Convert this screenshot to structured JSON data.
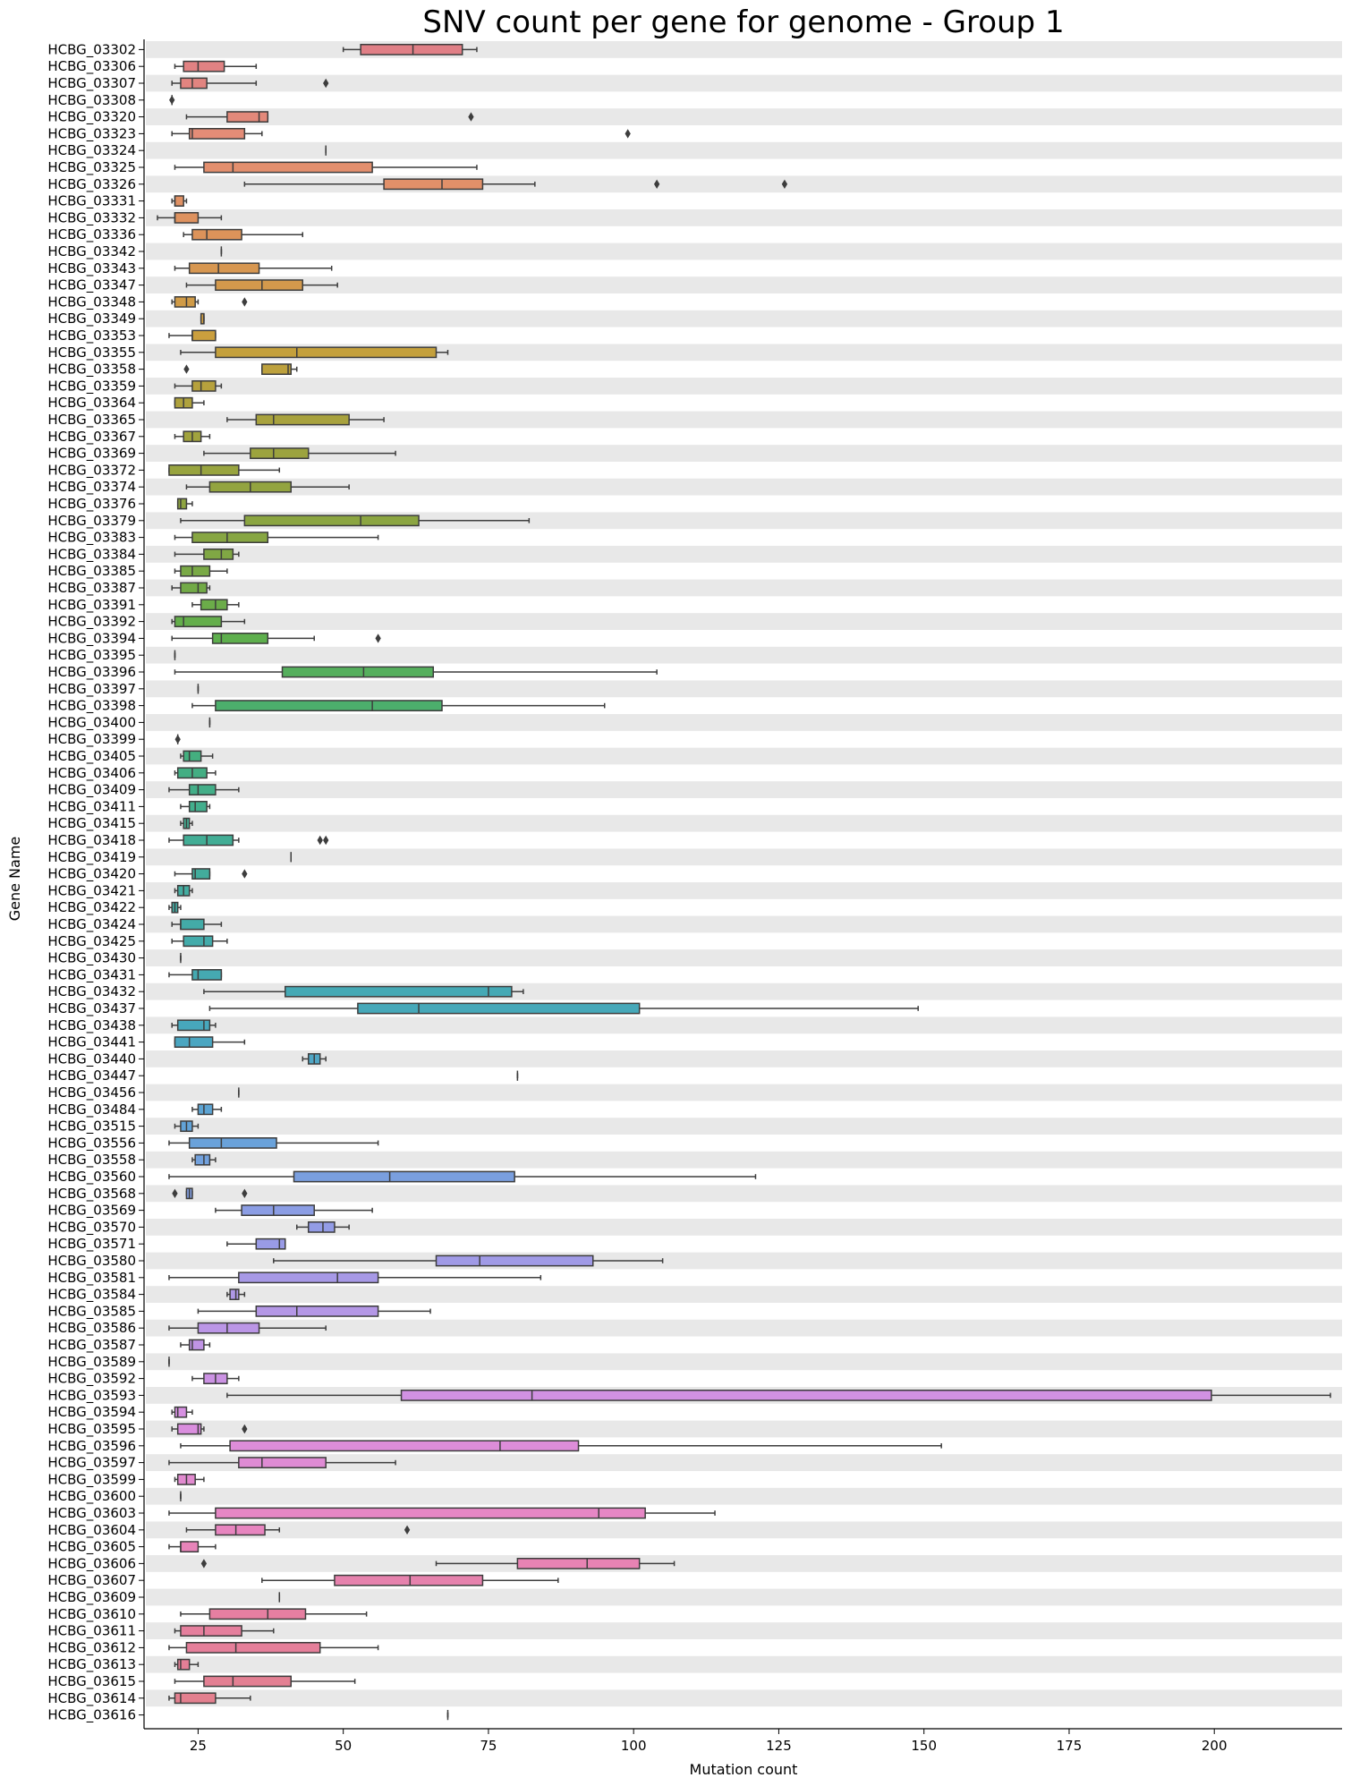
{
  "chart_data": {
    "type": "box",
    "orientation": "horizontal",
    "title": "SNV count per gene for genome - Group 1",
    "xlabel": "Mutation count",
    "ylabel": "Gene Name",
    "xlim": [
      16,
      222
    ],
    "xticks": [
      25,
      50,
      75,
      100,
      125,
      150,
      175,
      200
    ],
    "row_stripes": true,
    "palette": [
      "#e07f86",
      "#e58e74",
      "#db9457",
      "#c8a03c",
      "#9fa33e",
      "#86a642",
      "#5eaf4d",
      "#44af79",
      "#42ad94",
      "#43aba8",
      "#47a7bd",
      "#62a3d8",
      "#929ce6",
      "#b996e6",
      "#d98fe0",
      "#e786c3",
      "#e67fa0",
      "#e2808c"
    ],
    "genes": [
      {
        "name": "HCBG_03302",
        "whislo": 50,
        "q1": 53,
        "med": 62,
        "q3": 70.5,
        "whishi": 73,
        "fliers": []
      },
      {
        "name": "HCBG_03306",
        "whislo": 21,
        "q1": 22.5,
        "med": 25,
        "q3": 29.5,
        "whishi": 35,
        "fliers": []
      },
      {
        "name": "HCBG_03307",
        "whislo": 20.5,
        "q1": 22,
        "med": 24,
        "q3": 26.5,
        "whishi": 35,
        "fliers": [
          47
        ]
      },
      {
        "name": "HCBG_03308",
        "whislo": 20.5,
        "q1": 20.5,
        "med": 20.5,
        "q3": 20.5,
        "whishi": 20.5,
        "fliers": [
          20.5
        ]
      },
      {
        "name": "HCBG_03320",
        "whislo": 23,
        "q1": 30,
        "med": 35.5,
        "q3": 37,
        "whishi": 37,
        "fliers": [
          72
        ]
      },
      {
        "name": "HCBG_03323",
        "whislo": 20.5,
        "q1": 23.5,
        "med": 24,
        "q3": 33,
        "whishi": 36,
        "fliers": [
          99
        ]
      },
      {
        "name": "HCBG_03324",
        "whislo": 47,
        "q1": 47,
        "med": 47,
        "q3": 47,
        "whishi": 47,
        "fliers": []
      },
      {
        "name": "HCBG_03325",
        "whislo": 21,
        "q1": 26,
        "med": 31,
        "q3": 55,
        "whishi": 73,
        "fliers": []
      },
      {
        "name": "HCBG_03326",
        "whislo": 33,
        "q1": 57,
        "med": 67,
        "q3": 74,
        "whishi": 83,
        "fliers": [
          104,
          126
        ]
      },
      {
        "name": "HCBG_03331",
        "whislo": 20.5,
        "q1": 21,
        "med": 21,
        "q3": 22.5,
        "whishi": 23,
        "fliers": []
      },
      {
        "name": "HCBG_03332",
        "whislo": 18,
        "q1": 21,
        "med": 21,
        "q3": 25,
        "whishi": 29,
        "fliers": []
      },
      {
        "name": "HCBG_03336",
        "whislo": 22.5,
        "q1": 24,
        "med": 26.5,
        "q3": 32.5,
        "whishi": 43,
        "fliers": []
      },
      {
        "name": "HCBG_03342",
        "whislo": 29,
        "q1": 29,
        "med": 29,
        "q3": 29,
        "whishi": 29,
        "fliers": []
      },
      {
        "name": "HCBG_03343",
        "whislo": 21,
        "q1": 23.5,
        "med": 28.5,
        "q3": 35.5,
        "whishi": 48,
        "fliers": []
      },
      {
        "name": "HCBG_03347",
        "whislo": 23,
        "q1": 28,
        "med": 36,
        "q3": 43,
        "whishi": 49,
        "fliers": []
      },
      {
        "name": "HCBG_03348",
        "whislo": 20.5,
        "q1": 21,
        "med": 23,
        "q3": 24.5,
        "whishi": 25,
        "fliers": [
          33
        ]
      },
      {
        "name": "HCBG_03349",
        "whislo": 25.5,
        "q1": 25.5,
        "med": 26,
        "q3": 26,
        "whishi": 26,
        "fliers": []
      },
      {
        "name": "HCBG_03353",
        "whislo": 20,
        "q1": 24,
        "med": 24,
        "q3": 28,
        "whishi": 28,
        "fliers": []
      },
      {
        "name": "HCBG_03355",
        "whislo": 22,
        "q1": 28,
        "med": 42,
        "q3": 66,
        "whishi": 68,
        "fliers": []
      },
      {
        "name": "HCBG_03358",
        "whislo": 36,
        "q1": 36,
        "med": 40.5,
        "q3": 41,
        "whishi": 42,
        "fliers": [
          23
        ]
      },
      {
        "name": "HCBG_03359",
        "whislo": 21,
        "q1": 24,
        "med": 25.5,
        "q3": 28,
        "whishi": 29,
        "fliers": []
      },
      {
        "name": "HCBG_03364",
        "whislo": 21,
        "q1": 21,
        "med": 22.5,
        "q3": 24,
        "whishi": 26,
        "fliers": []
      },
      {
        "name": "HCBG_03365",
        "whislo": 30,
        "q1": 35,
        "med": 38,
        "q3": 51,
        "whishi": 57,
        "fliers": []
      },
      {
        "name": "HCBG_03367",
        "whislo": 21,
        "q1": 22.5,
        "med": 24,
        "q3": 25.5,
        "whishi": 27,
        "fliers": []
      },
      {
        "name": "HCBG_03369",
        "whislo": 26,
        "q1": 34,
        "med": 38,
        "q3": 44,
        "whishi": 59,
        "fliers": []
      },
      {
        "name": "HCBG_03372",
        "whislo": 20,
        "q1": 20,
        "med": 25.5,
        "q3": 32,
        "whishi": 39,
        "fliers": []
      },
      {
        "name": "HCBG_03374",
        "whislo": 23,
        "q1": 27,
        "med": 34,
        "q3": 41,
        "whishi": 51,
        "fliers": []
      },
      {
        "name": "HCBG_03376",
        "whislo": 21.5,
        "q1": 21.5,
        "med": 22,
        "q3": 23,
        "whishi": 24,
        "fliers": []
      },
      {
        "name": "HCBG_03379",
        "whislo": 22,
        "q1": 33,
        "med": 53,
        "q3": 63,
        "whishi": 82,
        "fliers": []
      },
      {
        "name": "HCBG_03383",
        "whislo": 21,
        "q1": 24,
        "med": 30,
        "q3": 37,
        "whishi": 56,
        "fliers": []
      },
      {
        "name": "HCBG_03384",
        "whislo": 21,
        "q1": 26,
        "med": 29,
        "q3": 31,
        "whishi": 32,
        "fliers": []
      },
      {
        "name": "HCBG_03385",
        "whislo": 21,
        "q1": 22,
        "med": 24,
        "q3": 27,
        "whishi": 30,
        "fliers": []
      },
      {
        "name": "HCBG_03387",
        "whislo": 20.5,
        "q1": 22,
        "med": 25,
        "q3": 26.5,
        "whishi": 27,
        "fliers": []
      },
      {
        "name": "HCBG_03391",
        "whislo": 24,
        "q1": 25.5,
        "med": 28,
        "q3": 30,
        "whishi": 32,
        "fliers": []
      },
      {
        "name": "HCBG_03392",
        "whislo": 20.5,
        "q1": 21,
        "med": 22.5,
        "q3": 29,
        "whishi": 33,
        "fliers": []
      },
      {
        "name": "HCBG_03394",
        "whislo": 20.5,
        "q1": 27.5,
        "med": 29,
        "q3": 37,
        "whishi": 45,
        "fliers": [
          56
        ]
      },
      {
        "name": "HCBG_03395",
        "whislo": 21,
        "q1": 21,
        "med": 21,
        "q3": 21,
        "whishi": 21,
        "fliers": []
      },
      {
        "name": "HCBG_03396",
        "whislo": 21,
        "q1": 39.5,
        "med": 53.5,
        "q3": 65.5,
        "whishi": 104,
        "fliers": []
      },
      {
        "name": "HCBG_03397",
        "whislo": 25,
        "q1": 25,
        "med": 25,
        "q3": 25,
        "whishi": 25,
        "fliers": []
      },
      {
        "name": "HCBG_03398",
        "whislo": 24,
        "q1": 28,
        "med": 55,
        "q3": 67,
        "whishi": 95,
        "fliers": []
      },
      {
        "name": "HCBG_03400",
        "whislo": 27,
        "q1": 27,
        "med": 27,
        "q3": 27,
        "whishi": 27,
        "fliers": []
      },
      {
        "name": "HCBG_03399",
        "whislo": 21.5,
        "q1": 21.5,
        "med": 21.5,
        "q3": 21.5,
        "whishi": 21.5,
        "fliers": [
          21.5
        ]
      },
      {
        "name": "HCBG_03405",
        "whislo": 22,
        "q1": 22.5,
        "med": 23.5,
        "q3": 25.5,
        "whishi": 27.5,
        "fliers": []
      },
      {
        "name": "HCBG_03406",
        "whislo": 21,
        "q1": 21.5,
        "med": 24,
        "q3": 26.5,
        "whishi": 28,
        "fliers": []
      },
      {
        "name": "HCBG_03409",
        "whislo": 20,
        "q1": 23.5,
        "med": 25,
        "q3": 28,
        "whishi": 32,
        "fliers": []
      },
      {
        "name": "HCBG_03411",
        "whislo": 22,
        "q1": 23.5,
        "med": 24.5,
        "q3": 26.5,
        "whishi": 27,
        "fliers": []
      },
      {
        "name": "HCBG_03415",
        "whislo": 22,
        "q1": 22.5,
        "med": 23,
        "q3": 23.5,
        "whishi": 24,
        "fliers": []
      },
      {
        "name": "HCBG_03418",
        "whislo": 20,
        "q1": 22.5,
        "med": 26.5,
        "q3": 31,
        "whishi": 32,
        "fliers": [
          46,
          47
        ]
      },
      {
        "name": "HCBG_03419",
        "whislo": 41,
        "q1": 41,
        "med": 41,
        "q3": 41,
        "whishi": 41,
        "fliers": []
      },
      {
        "name": "HCBG_03420",
        "whislo": 21,
        "q1": 24,
        "med": 24.5,
        "q3": 27,
        "whishi": 27,
        "fliers": [
          33
        ]
      },
      {
        "name": "HCBG_03421",
        "whislo": 21,
        "q1": 21.5,
        "med": 22.5,
        "q3": 23.5,
        "whishi": 24,
        "fliers": []
      },
      {
        "name": "HCBG_03422",
        "whislo": 20,
        "q1": 20.5,
        "med": 21,
        "q3": 21.5,
        "whishi": 22,
        "fliers": []
      },
      {
        "name": "HCBG_03424",
        "whislo": 20.5,
        "q1": 22,
        "med": 22,
        "q3": 26,
        "whishi": 29,
        "fliers": []
      },
      {
        "name": "HCBG_03425",
        "whislo": 20.5,
        "q1": 22.5,
        "med": 26,
        "q3": 27.5,
        "whishi": 30,
        "fliers": []
      },
      {
        "name": "HCBG_03430",
        "whislo": 22,
        "q1": 22,
        "med": 22,
        "q3": 22,
        "whishi": 22,
        "fliers": []
      },
      {
        "name": "HCBG_03431",
        "whislo": 20,
        "q1": 24,
        "med": 25,
        "q3": 29,
        "whishi": 29,
        "fliers": []
      },
      {
        "name": "HCBG_03432",
        "whislo": 26,
        "q1": 40,
        "med": 75,
        "q3": 79,
        "whishi": 81,
        "fliers": []
      },
      {
        "name": "HCBG_03437",
        "whislo": 27,
        "q1": 52.5,
        "med": 63,
        "q3": 101,
        "whishi": 149,
        "fliers": []
      },
      {
        "name": "HCBG_03438",
        "whislo": 20.5,
        "q1": 21.5,
        "med": 26,
        "q3": 27,
        "whishi": 28,
        "fliers": []
      },
      {
        "name": "HCBG_03441",
        "whislo": 21,
        "q1": 21,
        "med": 23.5,
        "q3": 27.5,
        "whishi": 33,
        "fliers": []
      },
      {
        "name": "HCBG_03440",
        "whislo": 43,
        "q1": 44,
        "med": 45,
        "q3": 46,
        "whishi": 47,
        "fliers": []
      },
      {
        "name": "HCBG_03447",
        "whislo": 80,
        "q1": 80,
        "med": 80,
        "q3": 80,
        "whishi": 80,
        "fliers": []
      },
      {
        "name": "HCBG_03456",
        "whislo": 32,
        "q1": 32,
        "med": 32,
        "q3": 32,
        "whishi": 32,
        "fliers": []
      },
      {
        "name": "HCBG_03484",
        "whislo": 24,
        "q1": 25,
        "med": 26,
        "q3": 27.5,
        "whishi": 29,
        "fliers": []
      },
      {
        "name": "HCBG_03515",
        "whislo": 21,
        "q1": 22,
        "med": 23,
        "q3": 24,
        "whishi": 25,
        "fliers": []
      },
      {
        "name": "HCBG_03556",
        "whislo": 20,
        "q1": 23.5,
        "med": 29,
        "q3": 38.5,
        "whishi": 56,
        "fliers": []
      },
      {
        "name": "HCBG_03558",
        "whislo": 24,
        "q1": 24.5,
        "med": 26,
        "q3": 27,
        "whishi": 28,
        "fliers": []
      },
      {
        "name": "HCBG_03560",
        "whislo": 20,
        "q1": 41.5,
        "med": 58,
        "q3": 79.5,
        "whishi": 121,
        "fliers": []
      },
      {
        "name": "HCBG_03568",
        "whislo": 23,
        "q1": 23,
        "med": 23.5,
        "q3": 24,
        "whishi": 24,
        "fliers": [
          21,
          33
        ]
      },
      {
        "name": "HCBG_03569",
        "whislo": 28,
        "q1": 32.5,
        "med": 38,
        "q3": 45,
        "whishi": 55,
        "fliers": []
      },
      {
        "name": "HCBG_03570",
        "whislo": 42,
        "q1": 44,
        "med": 46.5,
        "q3": 48.5,
        "whishi": 51,
        "fliers": []
      },
      {
        "name": "HCBG_03571",
        "whislo": 30,
        "q1": 35,
        "med": 39,
        "q3": 40,
        "whishi": 40,
        "fliers": []
      },
      {
        "name": "HCBG_03580",
        "whislo": 38,
        "q1": 66,
        "med": 73.5,
        "q3": 93,
        "whishi": 105,
        "fliers": []
      },
      {
        "name": "HCBG_03581",
        "whislo": 20,
        "q1": 32,
        "med": 49,
        "q3": 56,
        "whishi": 84,
        "fliers": []
      },
      {
        "name": "HCBG_03584",
        "whislo": 30,
        "q1": 30.5,
        "med": 31.5,
        "q3": 32,
        "whishi": 33,
        "fliers": []
      },
      {
        "name": "HCBG_03585",
        "whislo": 25,
        "q1": 35,
        "med": 42,
        "q3": 56,
        "whishi": 65,
        "fliers": []
      },
      {
        "name": "HCBG_03586",
        "whislo": 20,
        "q1": 25,
        "med": 30,
        "q3": 35.5,
        "whishi": 47,
        "fliers": []
      },
      {
        "name": "HCBG_03587",
        "whislo": 22,
        "q1": 23.5,
        "med": 24,
        "q3": 26,
        "whishi": 27,
        "fliers": []
      },
      {
        "name": "HCBG_03589",
        "whislo": 20,
        "q1": 20,
        "med": 20,
        "q3": 20,
        "whishi": 20,
        "fliers": []
      },
      {
        "name": "HCBG_03592",
        "whislo": 24,
        "q1": 26,
        "med": 28,
        "q3": 30,
        "whishi": 32,
        "fliers": []
      },
      {
        "name": "HCBG_03593",
        "whislo": 30,
        "q1": 60,
        "med": 82.5,
        "q3": 199.5,
        "whishi": 220,
        "fliers": []
      },
      {
        "name": "HCBG_03594",
        "whislo": 20.5,
        "q1": 21,
        "med": 21.5,
        "q3": 23,
        "whishi": 24,
        "fliers": []
      },
      {
        "name": "HCBG_03595",
        "whislo": 20.5,
        "q1": 21.5,
        "med": 25,
        "q3": 25.5,
        "whishi": 26,
        "fliers": [
          33
        ]
      },
      {
        "name": "HCBG_03596",
        "whislo": 22,
        "q1": 30.5,
        "med": 77,
        "q3": 90.5,
        "whishi": 153,
        "fliers": []
      },
      {
        "name": "HCBG_03597",
        "whislo": 20,
        "q1": 32,
        "med": 36,
        "q3": 47,
        "whishi": 59,
        "fliers": []
      },
      {
        "name": "HCBG_03599",
        "whislo": 21,
        "q1": 21.5,
        "med": 23,
        "q3": 24.5,
        "whishi": 26,
        "fliers": []
      },
      {
        "name": "HCBG_03600",
        "whislo": 22,
        "q1": 22,
        "med": 22,
        "q3": 22,
        "whishi": 22,
        "fliers": []
      },
      {
        "name": "HCBG_03603",
        "whislo": 20,
        "q1": 28,
        "med": 94,
        "q3": 102,
        "whishi": 114,
        "fliers": []
      },
      {
        "name": "HCBG_03604",
        "whislo": 23,
        "q1": 28,
        "med": 31.5,
        "q3": 36.5,
        "whishi": 39,
        "fliers": [
          61
        ]
      },
      {
        "name": "HCBG_03605",
        "whislo": 20,
        "q1": 22,
        "med": 22,
        "q3": 25,
        "whishi": 28,
        "fliers": []
      },
      {
        "name": "HCBG_03606",
        "whislo": 66,
        "q1": 80,
        "med": 92,
        "q3": 101,
        "whishi": 107,
        "fliers": [
          26
        ]
      },
      {
        "name": "HCBG_03607",
        "whislo": 36,
        "q1": 48.5,
        "med": 61.5,
        "q3": 74,
        "whishi": 87,
        "fliers": []
      },
      {
        "name": "HCBG_03609",
        "whislo": 39,
        "q1": 39,
        "med": 39,
        "q3": 39,
        "whishi": 39,
        "fliers": []
      },
      {
        "name": "HCBG_03610",
        "whislo": 22,
        "q1": 27,
        "med": 37,
        "q3": 43.5,
        "whishi": 54,
        "fliers": []
      },
      {
        "name": "HCBG_03611",
        "whislo": 21,
        "q1": 22,
        "med": 26,
        "q3": 32.5,
        "whishi": 38,
        "fliers": []
      },
      {
        "name": "HCBG_03612",
        "whislo": 20,
        "q1": 23,
        "med": 31.5,
        "q3": 46,
        "whishi": 56,
        "fliers": []
      },
      {
        "name": "HCBG_03613",
        "whislo": 21,
        "q1": 21.5,
        "med": 22,
        "q3": 23.5,
        "whishi": 25,
        "fliers": []
      },
      {
        "name": "HCBG_03615",
        "whislo": 21,
        "q1": 26,
        "med": 31,
        "q3": 41,
        "whishi": 52,
        "fliers": []
      },
      {
        "name": "HCBG_03614",
        "whislo": 20,
        "q1": 21,
        "med": 22,
        "q3": 28,
        "whishi": 34,
        "fliers": []
      },
      {
        "name": "HCBG_03616",
        "whislo": 68,
        "q1": 68,
        "med": 68,
        "q3": 68,
        "whishi": 68,
        "fliers": []
      }
    ]
  }
}
